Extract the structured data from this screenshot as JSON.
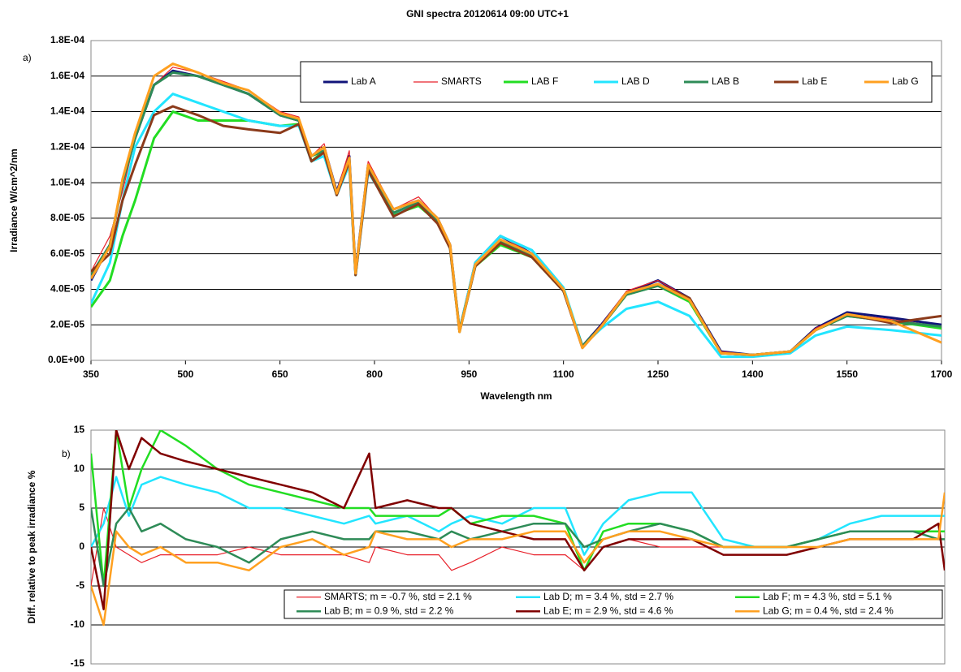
{
  "chart_data": [
    {
      "type": "line",
      "title": "GNI spectra 20120614 09:00  UTC+1",
      "panel_label": "a)",
      "xlabel": "Wavelength  nm",
      "ylabel": "Irradiance W/cm^2/nm",
      "xlim": [
        350,
        1700
      ],
      "xticks": [
        350,
        500,
        650,
        800,
        950,
        1100,
        1250,
        1400,
        1550,
        1700
      ],
      "ylim": [
        0,
        0.00018
      ],
      "yticks": [
        {
          "value": 0,
          "label": "0.0E+00"
        },
        {
          "value": 2e-05,
          "label": "2.0E-05"
        },
        {
          "value": 4e-05,
          "label": "4.0E-05"
        },
        {
          "value": 6e-05,
          "label": "6.0E-05"
        },
        {
          "value": 8e-05,
          "label": "8.0E-05"
        },
        {
          "value": 0.0001,
          "label": "1.0E-04"
        },
        {
          "value": 0.00012,
          "label": "1.2E-04"
        },
        {
          "value": 0.00014,
          "label": "1.4E-04"
        },
        {
          "value": 0.00016,
          "label": "1.6E-04"
        },
        {
          "value": 0.00018,
          "label": "1.8E-04"
        }
      ],
      "grid": true,
      "x": [
        350,
        380,
        400,
        420,
        450,
        480,
        520,
        560,
        600,
        650,
        680,
        700,
        720,
        740,
        760,
        770,
        790,
        830,
        870,
        900,
        920,
        935,
        960,
        1000,
        1050,
        1100,
        1130,
        1160,
        1200,
        1250,
        1300,
        1350,
        1400,
        1460,
        1500,
        1550,
        1620,
        1700
      ],
      "series": [
        {
          "name": "Lab A",
          "color": "#10147a",
          "width": 3,
          "values": [
            4.5e-05,
            6.5e-05,
            0.0001,
            0.000125,
            0.000155,
            0.000163,
            0.00016,
            0.000155,
            0.00015,
            0.000138,
            0.000135,
            0.000115,
            0.00012,
            9.5e-05,
            0.000115,
            5e-05,
            0.00011,
            8.5e-05,
            9e-05,
            8e-05,
            6.5e-05,
            1.7e-05,
            5.5e-05,
            7e-05,
            6e-05,
            4e-05,
            8e-06,
            2e-05,
            3.8e-05,
            4.5e-05,
            3.5e-05,
            5e-06,
            3e-06,
            5e-06,
            1.8e-05,
            2.7e-05,
            2.4e-05,
            2e-05
          ]
        },
        {
          "name": "SMARTS",
          "color": "#e8202a",
          "width": 1.2,
          "values": [
            5e-05,
            7e-05,
            9.5e-05,
            0.000125,
            0.000155,
            0.000165,
            0.000162,
            0.000157,
            0.000152,
            0.00014,
            0.000137,
            0.000115,
            0.000122,
            9.5e-05,
            0.000118,
            5e-05,
            0.000112,
            8.5e-05,
            9.2e-05,
            8e-05,
            6.5e-05,
            1.8e-05,
            5.5e-05,
            7e-05,
            6e-05,
            4e-05,
            8e-06,
            2e-05,
            3.9e-05,
            4.5e-05,
            3.5e-05,
            5e-06,
            3e-06,
            5e-06,
            1.8e-05,
            2.6e-05,
            2.3e-05,
            1.9e-05
          ]
        },
        {
          "name": "LAB F",
          "color": "#22dd22",
          "width": 3,
          "values": [
            3e-05,
            4.5e-05,
            7e-05,
            9e-05,
            0.000125,
            0.00014,
            0.000135,
            0.000135,
            0.000135,
            0.000132,
            0.000133,
            0.000112,
            0.000118,
            9.3e-05,
            0.000112,
            4.8e-05,
            0.000108,
            8.2e-05,
            8.7e-05,
            7.8e-05,
            6.3e-05,
            1.6e-05,
            5.3e-05,
            6.5e-05,
            5.8e-05,
            3.9e-05,
            8e-06,
            1.9e-05,
            3.7e-05,
            4.2e-05,
            3.3e-05,
            4e-06,
            3e-06,
            5e-06,
            1.7e-05,
            2.5e-05,
            2.2e-05,
            1.8e-05
          ]
        },
        {
          "name": "LAB D",
          "color": "#22e5ff",
          "width": 3,
          "values": [
            3.2e-05,
            5.5e-05,
            9e-05,
            0.00012,
            0.00014,
            0.00015,
            0.000145,
            0.00014,
            0.000135,
            0.000132,
            0.000132,
            0.000112,
            0.000115,
            9.3e-05,
            0.00011,
            4.8e-05,
            0.000106,
            8.3e-05,
            8.8e-05,
            7.9e-05,
            6.4e-05,
            1.7e-05,
            5.5e-05,
            7e-05,
            6.2e-05,
            4.1e-05,
            8e-06,
            1.8e-05,
            2.9e-05,
            3.3e-05,
            2.5e-05,
            2e-06,
            2e-06,
            4e-06,
            1.4e-05,
            1.9e-05,
            1.7e-05,
            1.4e-05
          ]
        },
        {
          "name": "LAB B",
          "color": "#2e8b57",
          "width": 3,
          "values": [
            4.8e-05,
            6.5e-05,
            0.0001,
            0.000125,
            0.000155,
            0.000162,
            0.00016,
            0.000155,
            0.00015,
            0.000138,
            0.000135,
            0.000115,
            0.000118,
            9.4e-05,
            0.000113,
            4.9e-05,
            0.000109,
            8.3e-05,
            8.9e-05,
            7.9e-05,
            6.4e-05,
            1.7e-05,
            5.3e-05,
            6.7e-05,
            5.9e-05,
            3.9e-05,
            8e-06,
            1.9e-05,
            3.7e-05,
            4.2e-05,
            3.4e-05,
            4e-06,
            3e-06,
            5e-06,
            1.7e-05,
            2.5e-05,
            2.2e-05,
            1.9e-05
          ]
        },
        {
          "name": "Lab E",
          "color": "#8b3a1a",
          "width": 3,
          "values": [
            5e-05,
            6e-05,
            9e-05,
            0.00011,
            0.000138,
            0.000143,
            0.000138,
            0.000132,
            0.00013,
            0.000128,
            0.000133,
            0.000112,
            0.000117,
            9.3e-05,
            0.000112,
            4.8e-05,
            0.000107,
            8.1e-05,
            8.8e-05,
            7.7e-05,
            6.3e-05,
            1.6e-05,
            5.3e-05,
            6.6e-05,
            5.8e-05,
            3.9e-05,
            7e-06,
            1.9e-05,
            3.8e-05,
            4.3e-05,
            3.5e-05,
            4e-06,
            3e-06,
            5e-06,
            1.7e-05,
            2.6e-05,
            2.1e-05,
            2.5e-05
          ]
        },
        {
          "name": "Lab G",
          "color": "#ffa020",
          "width": 3,
          "values": [
            4.6e-05,
            6.4e-05,
            0.000102,
            0.000128,
            0.00016,
            0.000167,
            0.000162,
            0.000156,
            0.000152,
            0.000139,
            0.000136,
            0.000115,
            0.00012,
            9.4e-05,
            0.000114,
            4.9e-05,
            0.00011,
            8.5e-05,
            9e-05,
            8e-05,
            6.5e-05,
            1.6e-05,
            5.4e-05,
            6.8e-05,
            6e-05,
            4e-05,
            7e-06,
            1.9e-05,
            3.8e-05,
            4.3e-05,
            3.4e-05,
            4e-06,
            3e-06,
            5e-06,
            1.7e-05,
            2.6e-05,
            2.2e-05,
            1e-05
          ]
        }
      ]
    },
    {
      "type": "line",
      "panel_label": "b)",
      "ylabel": "Diff. relative to peak irradiance %",
      "xlim": [
        350,
        1700
      ],
      "ylim": [
        -15,
        15
      ],
      "yticks": [
        -15,
        -10,
        -5,
        0,
        5,
        10,
        15
      ],
      "grid": true,
      "x": [
        350,
        370,
        390,
        410,
        430,
        460,
        500,
        550,
        600,
        650,
        700,
        750,
        790,
        800,
        850,
        900,
        920,
        950,
        1000,
        1050,
        1100,
        1130,
        1160,
        1200,
        1250,
        1300,
        1350,
        1400,
        1450,
        1500,
        1550,
        1600,
        1650,
        1690,
        1700
      ],
      "series": [
        {
          "name": "SMARTS; m = -0.7 %, std = 2.1 %",
          "color": "#e8202a",
          "width": 1.2,
          "values": [
            -5,
            5,
            0,
            -1,
            -2,
            -1,
            -1,
            -1,
            0,
            -1,
            -1,
            -1,
            -2,
            0,
            -1,
            -1,
            -3,
            -2,
            0,
            -1,
            -1,
            -3,
            0,
            1,
            0,
            0,
            0,
            0,
            0,
            0,
            1,
            1,
            1,
            1,
            1
          ]
        },
        {
          "name": "Lab D; m = 3.4 %, std = 2.7 %",
          "color": "#22e5ff",
          "width": 2.5,
          "values": [
            0,
            3,
            9,
            4,
            8,
            9,
            8,
            7,
            5,
            5,
            4,
            3,
            4,
            3,
            4,
            2,
            3,
            4,
            3,
            5,
            5,
            -1,
            3,
            6,
            7,
            7,
            1,
            0,
            0,
            1,
            3,
            4,
            4,
            4,
            4
          ]
        },
        {
          "name": "Lab F; m = 4.3 %, std = 5.1 %",
          "color": "#22dd22",
          "width": 2.5,
          "values": [
            12,
            -5,
            15,
            5,
            10,
            15,
            13,
            10,
            8,
            7,
            6,
            5,
            5,
            4,
            4,
            4,
            5,
            3,
            4,
            4,
            3,
            -3,
            2,
            3,
            3,
            2,
            0,
            0,
            0,
            1,
            2,
            2,
            2,
            2,
            2
          ]
        },
        {
          "name": "Lab B; m = 0.9 %, std = 2.2 %",
          "color": "#2e8b57",
          "width": 2.5,
          "values": [
            5,
            -5,
            3,
            5,
            2,
            3,
            1,
            0,
            -2,
            1,
            2,
            1,
            1,
            2,
            2,
            1,
            2,
            1,
            2,
            3,
            3,
            0,
            1,
            2,
            3,
            2,
            0,
            0,
            0,
            1,
            2,
            2,
            2,
            1,
            1
          ]
        },
        {
          "name": "Lab E; m = 2.9 %, std = 4.6 %",
          "color": "#800000",
          "width": 2.5,
          "values": [
            0,
            -8,
            15,
            10,
            14,
            12,
            11,
            10,
            9,
            8,
            7,
            5,
            12,
            5,
            6,
            5,
            5,
            3,
            2,
            1,
            1,
            -3,
            0,
            1,
            1,
            1,
            -1,
            -1,
            -1,
            0,
            1,
            1,
            1,
            3,
            -3
          ]
        },
        {
          "name": "Lab G; m = 0.4 %, std = 2.4 %",
          "color": "#ffa020",
          "width": 2.5,
          "values": [
            -5,
            -10,
            2,
            0,
            -1,
            0,
            -2,
            -2,
            -3,
            0,
            1,
            -1,
            0,
            2,
            1,
            1,
            0,
            1,
            1,
            2,
            2,
            -2,
            1,
            2,
            2,
            1,
            0,
            0,
            0,
            0,
            1,
            1,
            1,
            1,
            7
          ]
        }
      ]
    }
  ]
}
